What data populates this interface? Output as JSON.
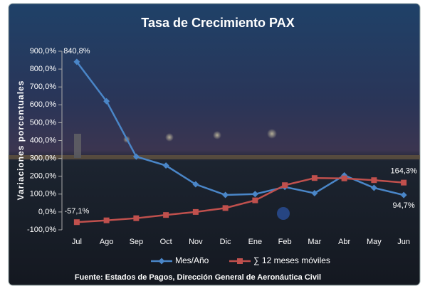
{
  "chart_data": {
    "type": "line",
    "title": "Tasa de Crecimiento PAX",
    "y_label": "Variaciones porcentuales",
    "source": "Fuente: Estados de Pagos, Dirección General de Aeronáutica Civil",
    "categories": [
      "Jul",
      "Ago",
      "Sep",
      "Oct",
      "Nov",
      "Dic",
      "Ene",
      "Feb",
      "Mar",
      "Abr",
      "May",
      "Jun"
    ],
    "series": [
      {
        "name": "Mes/Año",
        "color": "#4a86c8",
        "marker": "diamond",
        "values": [
          840.8,
          620,
          310,
          260,
          155,
          95,
          100,
          140,
          105,
          205,
          135,
          94.7
        ],
        "value_labels": [
          "840,8%",
          null,
          null,
          null,
          null,
          null,
          null,
          null,
          null,
          null,
          null,
          "94,7%"
        ]
      },
      {
        "name": "∑ 12 meses móviles",
        "color": "#c0504d",
        "marker": "square",
        "values": [
          -57.1,
          -47,
          -35,
          -17,
          0,
          22,
          65,
          150,
          190,
          188,
          178,
          164.3
        ],
        "value_labels": [
          "-57,1%",
          null,
          null,
          null,
          null,
          null,
          null,
          null,
          null,
          null,
          null,
          "164,3%"
        ]
      }
    ],
    "ylim": [
      -100,
      900
    ],
    "yticks": [
      {
        "value": -100,
        "label": "-100,0%"
      },
      {
        "value": 0,
        "label": "0,0%"
      },
      {
        "value": 100,
        "label": "100,0%"
      },
      {
        "value": 200,
        "label": "200,0%"
      },
      {
        "value": 300,
        "label": "300,0%"
      },
      {
        "value": 400,
        "label": "400,0%"
      },
      {
        "value": 500,
        "label": "500,0%"
      },
      {
        "value": 600,
        "label": "600,0%"
      },
      {
        "value": 700,
        "label": "700,0%"
      },
      {
        "value": 800,
        "label": "800,0%"
      },
      {
        "value": 900,
        "label": "900,0%"
      }
    ],
    "legend": "bottom"
  }
}
